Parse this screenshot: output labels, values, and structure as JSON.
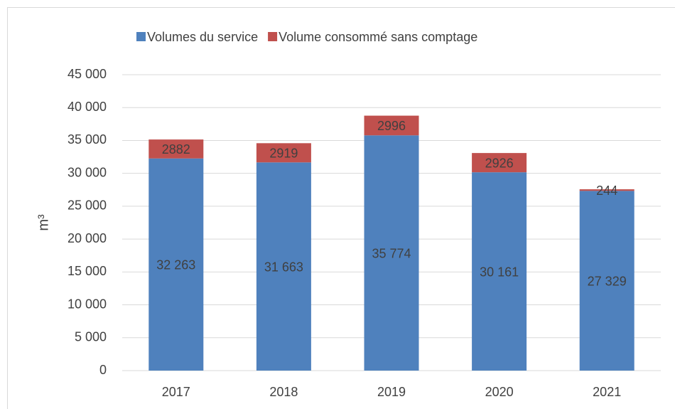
{
  "chart_data": {
    "type": "stacked_bar",
    "categories": [
      "2017",
      "2018",
      "2019",
      "2020",
      "2021"
    ],
    "y_label": "m³",
    "series": [
      {
        "name": "Volumes du service",
        "color": "#4f81bd",
        "values": [
          32263,
          31663,
          35774,
          30161,
          27329
        ],
        "value_labels": [
          "32 263",
          "31 663",
          "35 774",
          "30 161",
          "27 329"
        ]
      },
      {
        "name": "Volume consommé sans comptage",
        "color": "#c0504d",
        "values": [
          2882,
          2919,
          2996,
          2926,
          244
        ]
      }
    ],
    "ylim": [
      0,
      45000
    ],
    "yticks": [
      0,
      {
        "value": 5000,
        "label": "5 000"
      },
      {
        "value": 10000,
        "label": "10 000"
      },
      {
        "value": 15000,
        "label": "15 000"
      },
      {
        "value": 20000,
        "label": "20 000"
      },
      {
        "value": 25000,
        "label": "25 000"
      },
      {
        "value": 30000,
        "label": "30 000"
      },
      {
        "value": 35000,
        "label": "35 000"
      },
      {
        "value": 40000,
        "label": "40 000"
      },
      {
        "value": 45000,
        "label": "45 000"
      }
    ],
    "grid": true,
    "legend": "top"
  }
}
